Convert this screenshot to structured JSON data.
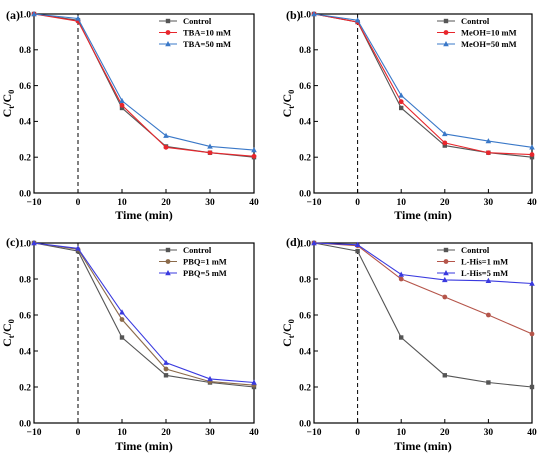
{
  "chart_data": [
    {
      "panel_label": "(a)",
      "type": "line",
      "x": [
        -10,
        0,
        10,
        20,
        30,
        40
      ],
      "xlabel": "Time (min)",
      "ylabel_main": "C",
      "ylabel_sub1": "t",
      "ylabel_sep": "/C",
      "ylabel_sub2": "0",
      "xlim": [
        -10,
        40
      ],
      "ylim": [
        0.0,
        1.0
      ],
      "xticks": [
        "−10",
        "0",
        "10",
        "20",
        "30",
        "40"
      ],
      "yticks": [
        "0.0",
        "0.2",
        "0.4",
        "0.6",
        "0.8",
        "1.0"
      ],
      "legend_position": "top-right",
      "vline_x": 0,
      "series": [
        {
          "name": "Control",
          "color": "#555555",
          "marker": "square",
          "values": [
            1.0,
            0.965,
            0.475,
            0.26,
            0.225,
            0.2
          ]
        },
        {
          "name": "TBA=10 mM",
          "color": "#e8262c",
          "marker": "circle",
          "values": [
            1.0,
            0.96,
            0.49,
            0.255,
            0.225,
            0.205
          ]
        },
        {
          "name": "TBA=50 mM",
          "color": "#3a78c8",
          "marker": "triangle",
          "values": [
            1.0,
            0.975,
            0.515,
            0.32,
            0.26,
            0.24
          ]
        }
      ]
    },
    {
      "panel_label": "(b)",
      "type": "line",
      "x": [
        -10,
        0,
        10,
        20,
        30,
        40
      ],
      "xlabel": "Time (min)",
      "ylabel_main": "C",
      "ylabel_sub1": "t",
      "ylabel_sep": "/C",
      "ylabel_sub2": "0",
      "xlim": [
        -10,
        40
      ],
      "ylim": [
        0.0,
        1.0
      ],
      "xticks": [
        "−10",
        "0",
        "10",
        "20",
        "30",
        "40"
      ],
      "yticks": [
        "0.0",
        "0.2",
        "0.4",
        "0.6",
        "0.8",
        "1.0"
      ],
      "legend_position": "top-right",
      "vline_x": 0,
      "series": [
        {
          "name": "Control",
          "color": "#555555",
          "marker": "square",
          "values": [
            1.0,
            0.955,
            0.475,
            0.265,
            0.225,
            0.2
          ]
        },
        {
          "name": "MeOH=10 mM",
          "color": "#e8262c",
          "marker": "circle",
          "values": [
            1.0,
            0.955,
            0.51,
            0.28,
            0.225,
            0.215
          ]
        },
        {
          "name": "MeOH=50 mM",
          "color": "#3a78c8",
          "marker": "triangle",
          "values": [
            1.0,
            0.965,
            0.545,
            0.33,
            0.29,
            0.255
          ]
        }
      ]
    },
    {
      "panel_label": "(c)",
      "type": "line",
      "x": [
        -10,
        0,
        10,
        20,
        30,
        40
      ],
      "xlabel": "Time (min)",
      "ylabel_main": "C",
      "ylabel_sub1": "t",
      "ylabel_sep": "/C",
      "ylabel_sub2": "0",
      "xlim": [
        -10,
        40
      ],
      "ylim": [
        0.0,
        1.0
      ],
      "xticks": [
        "−10",
        "0",
        "10",
        "20",
        "30",
        "40"
      ],
      "yticks": [
        "0.0",
        "0.2",
        "0.4",
        "0.6",
        "0.8",
        "1.0"
      ],
      "legend_position": "top-right",
      "vline_x": 0,
      "series": [
        {
          "name": "Control",
          "color": "#555555",
          "marker": "square",
          "values": [
            1.0,
            0.955,
            0.475,
            0.265,
            0.225,
            0.2
          ]
        },
        {
          "name": "PBQ=1 mM",
          "color": "#8b6a4a",
          "marker": "circle",
          "values": [
            1.0,
            0.965,
            0.575,
            0.3,
            0.23,
            0.21
          ]
        },
        {
          "name": "PBQ=5 mM",
          "color": "#3a3adf",
          "marker": "triangle",
          "values": [
            1.0,
            0.97,
            0.615,
            0.335,
            0.245,
            0.225
          ]
        }
      ]
    },
    {
      "panel_label": "(d)",
      "type": "line",
      "x": [
        -10,
        0,
        10,
        20,
        30,
        40
      ],
      "xlabel": "Time (min)",
      "ylabel_main": "C",
      "ylabel_sub1": "t",
      "ylabel_sep": "/C",
      "ylabel_sub2": "0",
      "xlim": [
        -10,
        40
      ],
      "ylim": [
        0.0,
        1.0
      ],
      "xticks": [
        "−10",
        "0",
        "10",
        "20",
        "30",
        "40"
      ],
      "yticks": [
        "0.0",
        "0.2",
        "0.4",
        "0.6",
        "0.8",
        "1.0"
      ],
      "legend_position": "top-right",
      "vline_x": 0,
      "series": [
        {
          "name": "Control",
          "color": "#555555",
          "marker": "square",
          "values": [
            1.0,
            0.955,
            0.475,
            0.265,
            0.225,
            0.2
          ]
        },
        {
          "name": "L-His=1 mM",
          "color": "#b5554a",
          "marker": "circle",
          "values": [
            1.0,
            0.985,
            0.8,
            0.7,
            0.6,
            0.495
          ]
        },
        {
          "name": "L-His=5 mM",
          "color": "#3a3adf",
          "marker": "triangle",
          "values": [
            1.0,
            0.99,
            0.825,
            0.795,
            0.79,
            0.775
          ]
        }
      ]
    }
  ]
}
